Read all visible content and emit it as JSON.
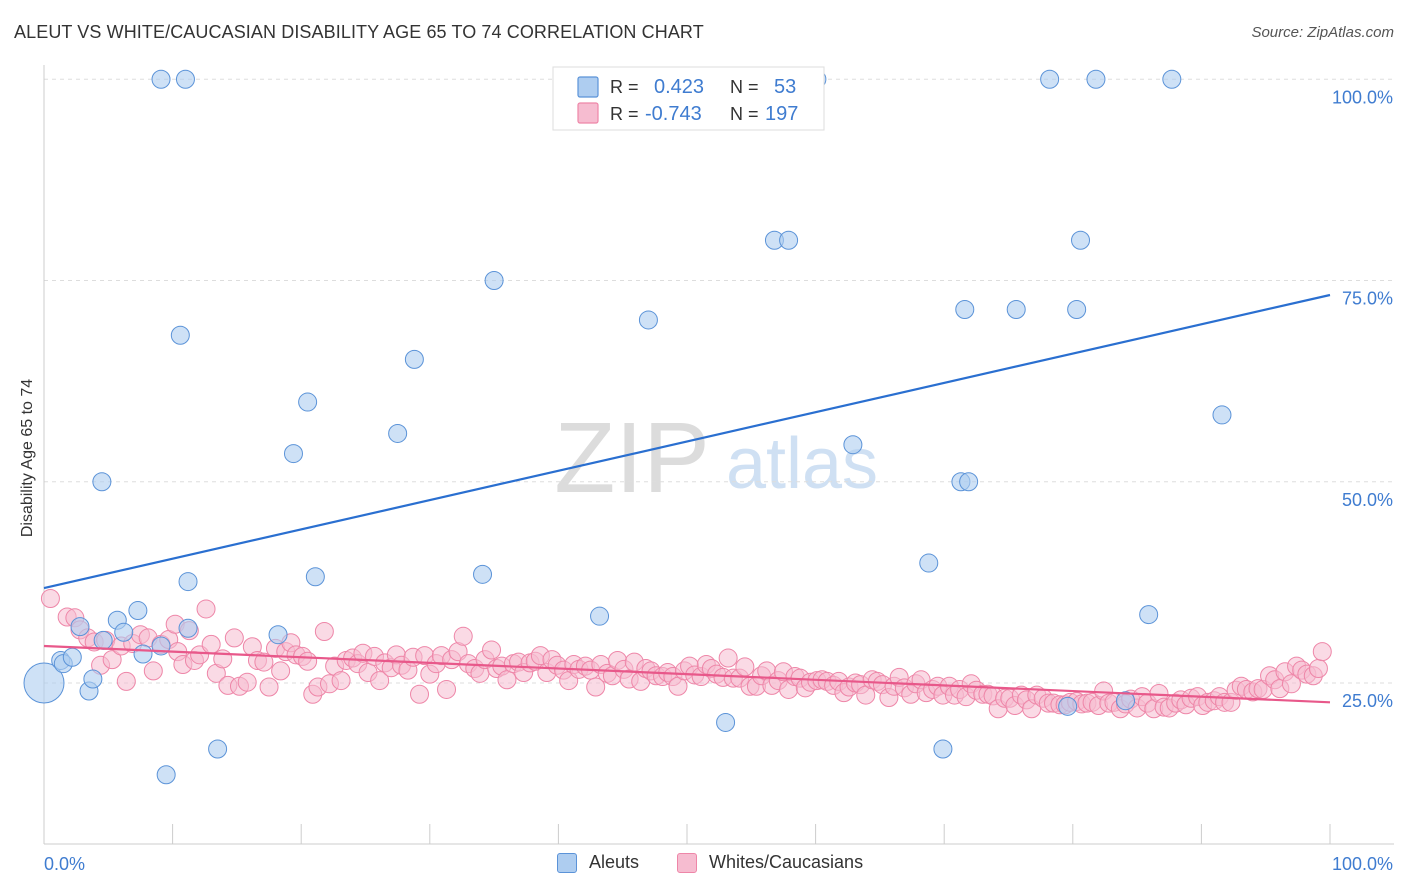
{
  "title": "ALEUT VS WHITE/CAUCASIAN DISABILITY AGE 65 TO 74 CORRELATION CHART",
  "source": "Source: ZipAtlas.com",
  "watermark": {
    "zip": "ZIP",
    "atlas": "atlas"
  },
  "legend": {
    "rows": [
      {
        "r_label": "R =",
        "r_value": "0.423",
        "n_label": "N =",
        "n_value": "53"
      },
      {
        "r_label": "R =",
        "r_value": "-0.743",
        "n_label": "N =",
        "n_value": "197"
      }
    ]
  },
  "colors": {
    "aleut_fill": "#aecdf0",
    "aleut_stroke": "#5b93d8",
    "aleut_line": "#2a6fd0",
    "white_fill": "#f6bcd0",
    "white_stroke": "#ee86a8",
    "white_line": "#e8588a",
    "value_text": "#3f7cd0",
    "grid": "#dddddd"
  },
  "chart_data": {
    "type": "scatter",
    "title": "ALEUT VS WHITE/CAUCASIAN DISABILITY AGE 65 TO 74 CORRELATION CHART",
    "xlabel": "",
    "ylabel": "Disability Age 65 to 74",
    "xlim": [
      0,
      100
    ],
    "ylim": [
      5,
      105
    ],
    "x_tick_labels": [
      "0.0%",
      "100.0%"
    ],
    "y_ticks": [
      25,
      50,
      75,
      100
    ],
    "y_tick_labels": [
      "25.0%",
      "50.0%",
      "75.0%",
      "100.0%"
    ],
    "grid": true,
    "legend_position": "bottom",
    "series": [
      {
        "name": "Aleuts",
        "r": 0.423,
        "n": 53,
        "trend": {
          "y_at_x0": 36.8,
          "y_at_x100": 73.2
        },
        "points": [
          [
            0,
            25
          ],
          [
            1.3,
            27.8
          ],
          [
            1.5,
            27.4
          ],
          [
            2.2,
            28.2
          ],
          [
            2.8,
            32
          ],
          [
            3.5,
            24
          ],
          [
            3.8,
            25.5
          ],
          [
            4.5,
            50
          ],
          [
            4.6,
            30.3
          ],
          [
            5.7,
            32.8
          ],
          [
            6.2,
            31.3
          ],
          [
            7.3,
            34
          ],
          [
            7.7,
            28.6
          ],
          [
            9.1,
            100
          ],
          [
            9.1,
            29.6
          ],
          [
            9.5,
            13.6
          ],
          [
            10.6,
            68.2
          ],
          [
            11,
            100
          ],
          [
            11.2,
            31.8
          ],
          [
            11.2,
            37.6
          ],
          [
            13.5,
            16.8
          ],
          [
            18.2,
            31
          ],
          [
            19.4,
            53.5
          ],
          [
            20.5,
            59.9
          ],
          [
            21.1,
            38.2
          ],
          [
            27.5,
            56
          ],
          [
            28.8,
            65.2
          ],
          [
            34.1,
            38.5
          ],
          [
            35,
            75
          ],
          [
            43.2,
            33.3
          ],
          [
            47,
            70.1
          ],
          [
            53,
            20.1
          ],
          [
            55.5,
            100
          ],
          [
            56.8,
            80
          ],
          [
            57.9,
            80
          ],
          [
            60.1,
            100
          ],
          [
            62.9,
            54.6
          ],
          [
            68.8,
            39.9
          ],
          [
            69.9,
            16.8
          ],
          [
            71.3,
            50
          ],
          [
            71.6,
            71.4
          ],
          [
            71.9,
            50
          ],
          [
            75.6,
            71.4
          ],
          [
            78.2,
            100
          ],
          [
            79.6,
            22.1
          ],
          [
            80.3,
            71.4
          ],
          [
            80.6,
            80
          ],
          [
            81.8,
            100
          ],
          [
            84.1,
            22.8
          ],
          [
            85.9,
            33.5
          ],
          [
            87.7,
            100
          ],
          [
            91.6,
            58.3
          ],
          [
            54.3,
            100
          ]
        ]
      },
      {
        "name": "Whites/Caucasians",
        "r": -0.743,
        "n": 197,
        "trend": {
          "y_at_x0": 29.6,
          "y_at_x100": 22.6
        },
        "points": [
          [
            0.5,
            35.5
          ],
          [
            1.8,
            33.2
          ],
          [
            2.4,
            33.1
          ],
          [
            2.8,
            31.6
          ],
          [
            3.4,
            30.6
          ],
          [
            3.9,
            30.1
          ],
          [
            4.4,
            27.2
          ],
          [
            4.8,
            30.3
          ],
          [
            5.3,
            27.9
          ],
          [
            6,
            29.6
          ],
          [
            6.4,
            25.2
          ],
          [
            6.9,
            29.9
          ],
          [
            7.5,
            31
          ],
          [
            8.1,
            30.6
          ],
          [
            8.5,
            26.5
          ],
          [
            9.1,
            29.8
          ],
          [
            9.7,
            30.4
          ],
          [
            10.2,
            32.3
          ],
          [
            10.4,
            28.9
          ],
          [
            10.8,
            27.3
          ],
          [
            11.3,
            31.5
          ],
          [
            11.7,
            27.8
          ],
          [
            12.1,
            28.5
          ],
          [
            12.6,
            34.2
          ],
          [
            13,
            29.8
          ],
          [
            13.4,
            26.2
          ],
          [
            13.9,
            28
          ],
          [
            14.3,
            24.7
          ],
          [
            14.8,
            30.6
          ],
          [
            15.2,
            24.6
          ],
          [
            15.8,
            25.1
          ],
          [
            16.2,
            29.5
          ],
          [
            16.6,
            27.8
          ],
          [
            17.1,
            27.6
          ],
          [
            17.5,
            24.5
          ],
          [
            18,
            29.3
          ],
          [
            18.4,
            26.5
          ],
          [
            18.8,
            28.9
          ],
          [
            19.2,
            30
          ],
          [
            19.6,
            28.5
          ],
          [
            20.1,
            28.3
          ],
          [
            20.5,
            27.7
          ],
          [
            20.9,
            23.6
          ],
          [
            21.3,
            24.5
          ],
          [
            21.8,
            31.4
          ],
          [
            22.2,
            24.9
          ],
          [
            22.6,
            27.1
          ],
          [
            23.1,
            25.3
          ],
          [
            23.5,
            27.8
          ],
          [
            24,
            28.1
          ],
          [
            24.4,
            27.4
          ],
          [
            24.8,
            28.7
          ],
          [
            25.2,
            26.3
          ],
          [
            25.7,
            28.3
          ],
          [
            26.1,
            25.3
          ],
          [
            26.5,
            27.5
          ],
          [
            27,
            26.9
          ],
          [
            27.4,
            28.5
          ],
          [
            27.8,
            27.2
          ],
          [
            28.3,
            26.6
          ],
          [
            28.7,
            28.2
          ],
          [
            29.2,
            23.6
          ],
          [
            29.6,
            28.4
          ],
          [
            30,
            26.1
          ],
          [
            30.5,
            27.4
          ],
          [
            30.9,
            28.4
          ],
          [
            31.3,
            24.2
          ],
          [
            31.7,
            27.9
          ],
          [
            32.2,
            28.9
          ],
          [
            32.6,
            30.8
          ],
          [
            33,
            27.4
          ],
          [
            33.5,
            26.8
          ],
          [
            33.9,
            26.2
          ],
          [
            34.3,
            27.9
          ],
          [
            34.8,
            29.1
          ],
          [
            35.2,
            26.8
          ],
          [
            35.6,
            27.1
          ],
          [
            36,
            25.4
          ],
          [
            36.5,
            27.4
          ],
          [
            36.9,
            27.6
          ],
          [
            37.3,
            26.3
          ],
          [
            37.8,
            27.5
          ],
          [
            38.2,
            27.7
          ],
          [
            38.6,
            28.4
          ],
          [
            39.1,
            26.3
          ],
          [
            39.5,
            27.9
          ],
          [
            39.9,
            27.2
          ],
          [
            40.4,
            26.6
          ],
          [
            40.8,
            25.3
          ],
          [
            41.2,
            27.3
          ],
          [
            41.6,
            26.7
          ],
          [
            42.1,
            27.1
          ],
          [
            42.5,
            26.6
          ],
          [
            42.9,
            24.5
          ],
          [
            43.3,
            27.3
          ],
          [
            43.8,
            26.2
          ],
          [
            44.2,
            25.9
          ],
          [
            44.6,
            27.8
          ],
          [
            45.1,
            26.7
          ],
          [
            45.5,
            25.5
          ],
          [
            45.9,
            27.6
          ],
          [
            46.4,
            25.2
          ],
          [
            46.8,
            26.8
          ],
          [
            47.2,
            26.5
          ],
          [
            47.6,
            25.9
          ],
          [
            48.1,
            25.8
          ],
          [
            48.5,
            26.3
          ],
          [
            48.9,
            25.8
          ],
          [
            49.3,
            24.6
          ],
          [
            49.8,
            26.5
          ],
          [
            50.2,
            27.1
          ],
          [
            50.6,
            26
          ],
          [
            51.1,
            25.8
          ],
          [
            51.5,
            27.3
          ],
          [
            51.9,
            26.8
          ],
          [
            52.3,
            26.1
          ],
          [
            52.8,
            25.7
          ],
          [
            53.2,
            28.1
          ],
          [
            53.6,
            25.6
          ],
          [
            54.1,
            25.6
          ],
          [
            54.5,
            27
          ],
          [
            54.9,
            24.6
          ],
          [
            55.4,
            24.6
          ],
          [
            55.8,
            25.9
          ],
          [
            56.2,
            26.5
          ],
          [
            56.6,
            24.7
          ],
          [
            57.1,
            25.3
          ],
          [
            57.5,
            26.4
          ],
          [
            57.9,
            24.2
          ],
          [
            58.4,
            25.8
          ],
          [
            58.8,
            25.6
          ],
          [
            59.2,
            24.4
          ],
          [
            59.6,
            25.1
          ],
          [
            60.1,
            25.3
          ],
          [
            60.5,
            25.4
          ],
          [
            60.9,
            25.2
          ],
          [
            61.4,
            24.7
          ],
          [
            61.8,
            25.2
          ],
          [
            62.2,
            23.8
          ],
          [
            62.6,
            24.5
          ],
          [
            63.1,
            25
          ],
          [
            63.5,
            24.8
          ],
          [
            63.9,
            23.5
          ],
          [
            64.4,
            25.4
          ],
          [
            64.8,
            25.2
          ],
          [
            65.2,
            24.8
          ],
          [
            65.7,
            23.2
          ],
          [
            66.1,
            24.6
          ],
          [
            66.5,
            25.7
          ],
          [
            66.9,
            24.4
          ],
          [
            67.4,
            23.6
          ],
          [
            67.8,
            24.9
          ],
          [
            68.2,
            25.4
          ],
          [
            68.6,
            23.8
          ],
          [
            69.1,
            24.2
          ],
          [
            69.5,
            24.6
          ],
          [
            69.9,
            23.5
          ],
          [
            70.4,
            24.6
          ],
          [
            70.8,
            23.5
          ],
          [
            71.2,
            24.2
          ],
          [
            71.7,
            23.3
          ],
          [
            72.1,
            24.9
          ],
          [
            72.5,
            24.1
          ],
          [
            73,
            23.6
          ],
          [
            73.4,
            23.6
          ],
          [
            73.8,
            23.4
          ],
          [
            74.2,
            21.8
          ],
          [
            74.7,
            23.1
          ],
          [
            75.1,
            23.1
          ],
          [
            75.5,
            22.2
          ],
          [
            76,
            23.5
          ],
          [
            76.4,
            22.9
          ],
          [
            76.8,
            21.8
          ],
          [
            77.2,
            23.5
          ],
          [
            77.7,
            23.1
          ],
          [
            78.1,
            22.5
          ],
          [
            78.5,
            22.5
          ],
          [
            79,
            22.3
          ],
          [
            79.4,
            22.3
          ],
          [
            79.8,
            22.6
          ],
          [
            80.3,
            22.7
          ],
          [
            80.7,
            22.4
          ],
          [
            81.1,
            22.5
          ],
          [
            81.5,
            22.6
          ],
          [
            82,
            22.2
          ],
          [
            82.4,
            24
          ],
          [
            82.8,
            22.5
          ],
          [
            83.2,
            22.6
          ],
          [
            83.7,
            21.8
          ],
          [
            84.1,
            22.4
          ],
          [
            84.5,
            23
          ],
          [
            85,
            21.9
          ],
          [
            85.4,
            23.3
          ],
          [
            85.8,
            22.5
          ],
          [
            86.3,
            21.8
          ],
          [
            86.7,
            23.7
          ],
          [
            87.1,
            22
          ],
          [
            87.5,
            21.9
          ],
          [
            88,
            22.5
          ],
          [
            88.4,
            22.9
          ],
          [
            88.8,
            22.3
          ],
          [
            89.2,
            23.1
          ],
          [
            89.7,
            23.3
          ],
          [
            90.1,
            22.2
          ],
          [
            90.5,
            22.6
          ],
          [
            91,
            22.8
          ],
          [
            91.4,
            23.3
          ],
          [
            91.8,
            22.6
          ],
          [
            92.3,
            22.6
          ],
          [
            92.7,
            24.1
          ],
          [
            93.1,
            24.6
          ],
          [
            93.5,
            24.2
          ],
          [
            94,
            23.9
          ],
          [
            94.4,
            24.3
          ],
          [
            94.8,
            24.2
          ],
          [
            95.3,
            25.9
          ],
          [
            95.7,
            25.4
          ],
          [
            96.1,
            24.3
          ],
          [
            96.5,
            26.4
          ],
          [
            97,
            24.9
          ],
          [
            97.4,
            27.1
          ],
          [
            97.8,
            26.6
          ],
          [
            98.2,
            26.1
          ],
          [
            98.7,
            25.9
          ],
          [
            99.1,
            26.8
          ],
          [
            99.4,
            28.9
          ]
        ]
      }
    ]
  },
  "bottom_legend": {
    "items": [
      "Aleuts",
      "Whites/Caucasians"
    ]
  }
}
